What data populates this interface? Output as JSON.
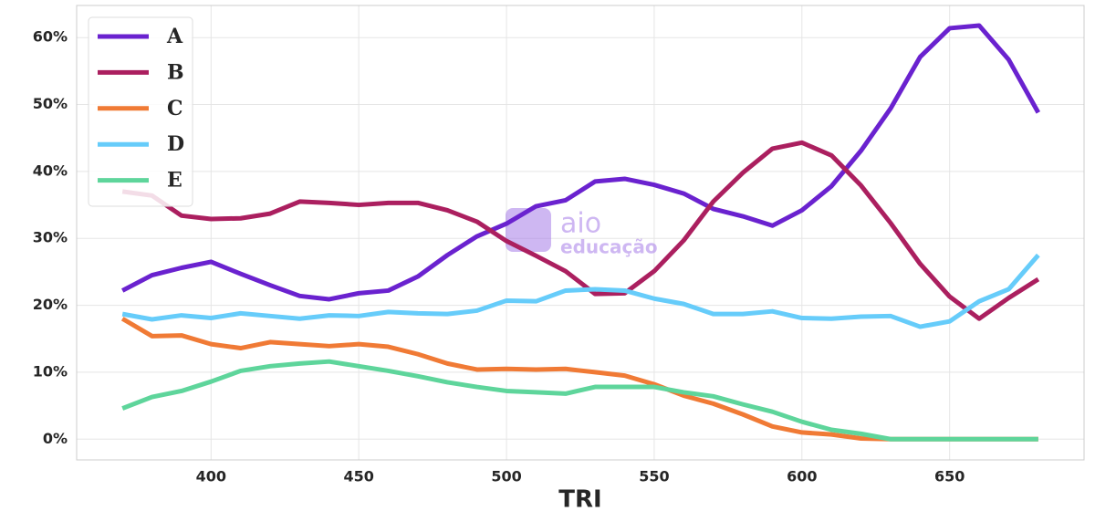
{
  "chart_data": {
    "type": "line",
    "xlabel": "TRI",
    "x": [
      370,
      380,
      390,
      400,
      410,
      420,
      430,
      440,
      450,
      460,
      470,
      480,
      490,
      500,
      510,
      520,
      530,
      540,
      550,
      560,
      570,
      580,
      590,
      600,
      610,
      620,
      630,
      640,
      650,
      660,
      670,
      680
    ],
    "series": [
      {
        "name": "A",
        "color": "#6a22cf",
        "values": [
          22.2,
          24.5,
          25.6,
          26.5,
          24.7,
          23.0,
          21.4,
          20.9,
          21.8,
          22.2,
          24.3,
          27.5,
          30.3,
          32.2,
          34.8,
          35.7,
          38.5,
          38.9,
          38.0,
          36.7,
          34.4,
          33.3,
          31.9,
          34.2,
          37.8,
          43.1,
          49.4,
          57.1,
          61.4,
          61.8,
          56.7,
          48.8
        ]
      },
      {
        "name": "B",
        "color": "#ab1f5f",
        "values": [
          37.0,
          36.4,
          33.4,
          32.9,
          33.0,
          33.7,
          35.5,
          35.3,
          35.0,
          35.3,
          35.3,
          34.2,
          32.5,
          29.6,
          27.4,
          25.1,
          21.7,
          21.8,
          25.1,
          29.7,
          35.5,
          39.8,
          43.4,
          44.3,
          42.4,
          37.9,
          32.3,
          26.2,
          21.3,
          18.0,
          21.1,
          23.9
        ]
      },
      {
        "name": "C",
        "color": "#f07a35",
        "values": [
          18.0,
          15.4,
          15.5,
          14.2,
          13.6,
          14.5,
          14.2,
          13.9,
          14.2,
          13.8,
          12.7,
          11.3,
          10.4,
          10.5,
          10.4,
          10.5,
          10.0,
          9.5,
          8.2,
          6.5,
          5.3,
          3.7,
          1.9,
          1.0,
          0.7,
          0.1,
          0,
          0,
          0,
          0,
          0,
          0
        ]
      },
      {
        "name": "D",
        "color": "#66ccfa",
        "values": [
          18.7,
          17.9,
          18.5,
          18.1,
          18.8,
          18.4,
          18.0,
          18.5,
          18.4,
          19.0,
          18.8,
          18.7,
          19.2,
          20.7,
          20.6,
          22.2,
          22.4,
          22.2,
          21.0,
          20.2,
          18.7,
          18.7,
          19.1,
          18.1,
          18.0,
          18.3,
          18.4,
          16.8,
          17.6,
          20.6,
          22.4,
          27.5
        ]
      },
      {
        "name": "E",
        "color": "#5ed59b",
        "values": [
          4.6,
          6.3,
          7.2,
          8.6,
          10.2,
          10.9,
          11.3,
          11.6,
          10.9,
          10.2,
          9.4,
          8.5,
          7.8,
          7.2,
          7.0,
          6.8,
          7.8,
          7.8,
          7.8,
          7.0,
          6.4,
          5.2,
          4.1,
          2.6,
          1.4,
          0.8,
          0,
          0,
          0,
          0,
          0,
          0
        ]
      }
    ],
    "xlim": [
      354.5,
      695.5
    ],
    "xticks": [
      400,
      450,
      500,
      550,
      600,
      650
    ],
    "ylim": [
      -3.1,
      64.8
    ],
    "yticks": [
      {
        "value": 0,
        "label": "0%"
      },
      {
        "value": 10,
        "label": "10%"
      },
      {
        "value": 20,
        "label": "20%"
      },
      {
        "value": 30,
        "label": "30%"
      },
      {
        "value": 40,
        "label": "40%"
      },
      {
        "value": 50,
        "label": "50%"
      },
      {
        "value": 60,
        "label": "60%"
      }
    ],
    "grid": true,
    "legend": "upper left",
    "watermark": [
      "aio",
      "educação"
    ]
  }
}
